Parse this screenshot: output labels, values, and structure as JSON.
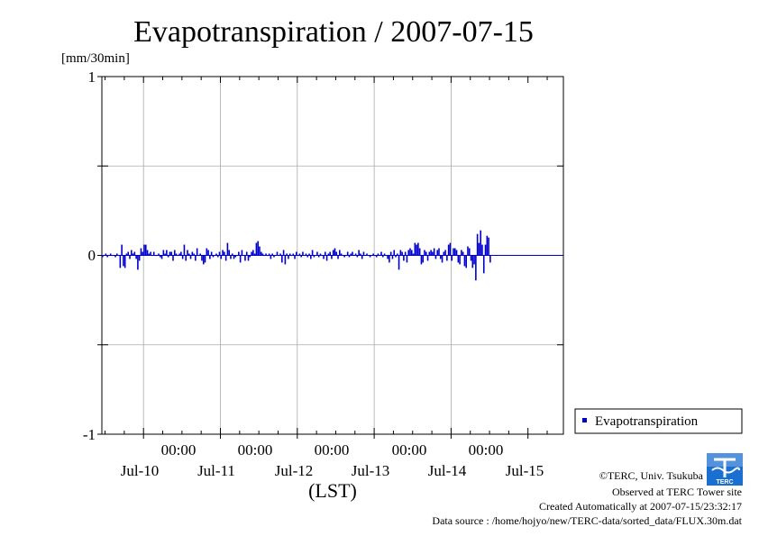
{
  "chart_data": {
    "type": "bar",
    "title": "Evapotranspiration / 2007-07-15",
    "ylabel": "[mm/30min]",
    "ylim": [
      -1,
      1
    ],
    "yticks": [
      "1",
      "0",
      "-1"
    ],
    "x_time_labels": [
      "00:00",
      "00:00",
      "00:00",
      "00:00",
      "00:00"
    ],
    "x_date_labels": [
      "Jul-10",
      "Jul-11",
      "Jul-12",
      "Jul-13",
      "Jul-14",
      "Jul-15"
    ],
    "xlabel": "(LST)",
    "grid": true,
    "legend_position": "bottom-right",
    "series": [
      {
        "name": "Evapotranspiration",
        "color": "#0000cc",
        "interval": "30min",
        "start": "2007-07-09T11:00",
        "values": [
          -0.01,
          0.0,
          0.01,
          -0.01,
          0.0,
          0.01,
          0.0,
          0.0,
          -0.01,
          0.01,
          0.0,
          -0.07,
          0.06,
          -0.06,
          -0.07,
          0.01,
          0.02,
          -0.02,
          0.03,
          0.01,
          0.02,
          -0.02,
          -0.08,
          -0.03,
          0.04,
          0.02,
          0.06,
          0.06,
          0.03,
          0.01,
          0.02,
          0.0,
          0.02,
          0.0,
          0.0,
          0.01,
          -0.01,
          -0.02,
          0.03,
          0.01,
          0.03,
          -0.01,
          0.02,
          0.02,
          -0.03,
          0.03,
          0.01,
          0.0,
          0.01,
          0.02,
          -0.02,
          0.06,
          -0.03,
          0.03,
          0.01,
          -0.02,
          0.02,
          0.01,
          -0.03,
          0.04,
          0.0,
          0.01,
          -0.03,
          -0.05,
          -0.04,
          0.04,
          0.03,
          -0.02,
          0.02,
          -0.01,
          0.0,
          0.01,
          -0.01,
          0.02,
          -0.02,
          0.03,
          0.02,
          -0.03,
          0.07,
          0.03,
          -0.02,
          0.01,
          -0.02,
          -0.01,
          0.0,
          0.02,
          -0.04,
          0.03,
          0.0,
          -0.03,
          0.02,
          -0.03,
          -0.01,
          0.02,
          0.03,
          0.01,
          0.07,
          0.08,
          0.05,
          0.02,
          0.01,
          0.0,
          0.01,
          0.0,
          0.01,
          -0.02,
          0.01,
          -0.01,
          0.0,
          0.02,
          0.0,
          0.01,
          -0.04,
          0.03,
          -0.05,
          0.01,
          -0.02,
          0.01,
          0.0,
          0.01,
          -0.02,
          0.02,
          0.0,
          0.01,
          -0.01,
          0.02,
          0.0,
          0.01,
          -0.01,
          0.01,
          -0.02,
          0.03,
          -0.01,
          0.0,
          0.02,
          -0.01,
          0.01,
          0.0,
          -0.02,
          0.02,
          -0.03,
          0.01,
          0.02,
          -0.02,
          0.03,
          0.04,
          0.02,
          -0.02,
          0.03,
          0.01,
          0.0,
          -0.01,
          0.0,
          0.02,
          -0.01,
          0.01,
          0.02,
          0.0,
          0.01,
          -0.01,
          0.03,
          0.01,
          -0.02,
          0.02,
          0.0,
          0.01,
          0.0,
          -0.01,
          0.0,
          0.01,
          0.0,
          -0.01,
          0.01,
          0.0,
          0.02,
          -0.01,
          0.01,
          0.0,
          -0.02,
          -0.04,
          0.02,
          -0.02,
          0.03,
          -0.01,
          0.01,
          -0.08,
          0.03,
          0.02,
          -0.03,
          0.02,
          -0.04,
          0.03,
          0.04,
          0.03,
          0.01,
          0.07,
          0.06,
          0.07,
          0.04,
          -0.05,
          -0.04,
          0.03,
          0.02,
          -0.03,
          0.02,
          0.03,
          0.02,
          0.04,
          -0.02,
          0.03,
          0.04,
          -0.02,
          -0.04,
          0.02,
          0.03,
          -0.03,
          0.06,
          0.07,
          -0.03,
          0.04,
          0.04,
          0.03,
          -0.04,
          -0.05,
          0.03,
          0.02,
          -0.06,
          -0.07,
          0.05,
          0.04,
          -0.03,
          -0.07,
          -0.05,
          -0.14,
          0.12,
          0.07,
          0.14,
          0.06,
          -0.1,
          0.06,
          0.11,
          0.1,
          -0.04
        ]
      }
    ]
  },
  "footer": {
    "copyright": "©TERC, Univ. Tsukuba",
    "observed": "Observed at TERC Tower site",
    "created": "Created Automatically at 2007-07-15/23:32:17",
    "source": "Data source : /home/hojyo/new/TERC-data/sorted_data/FLUX.30m.dat",
    "logo_text": "TERC"
  }
}
